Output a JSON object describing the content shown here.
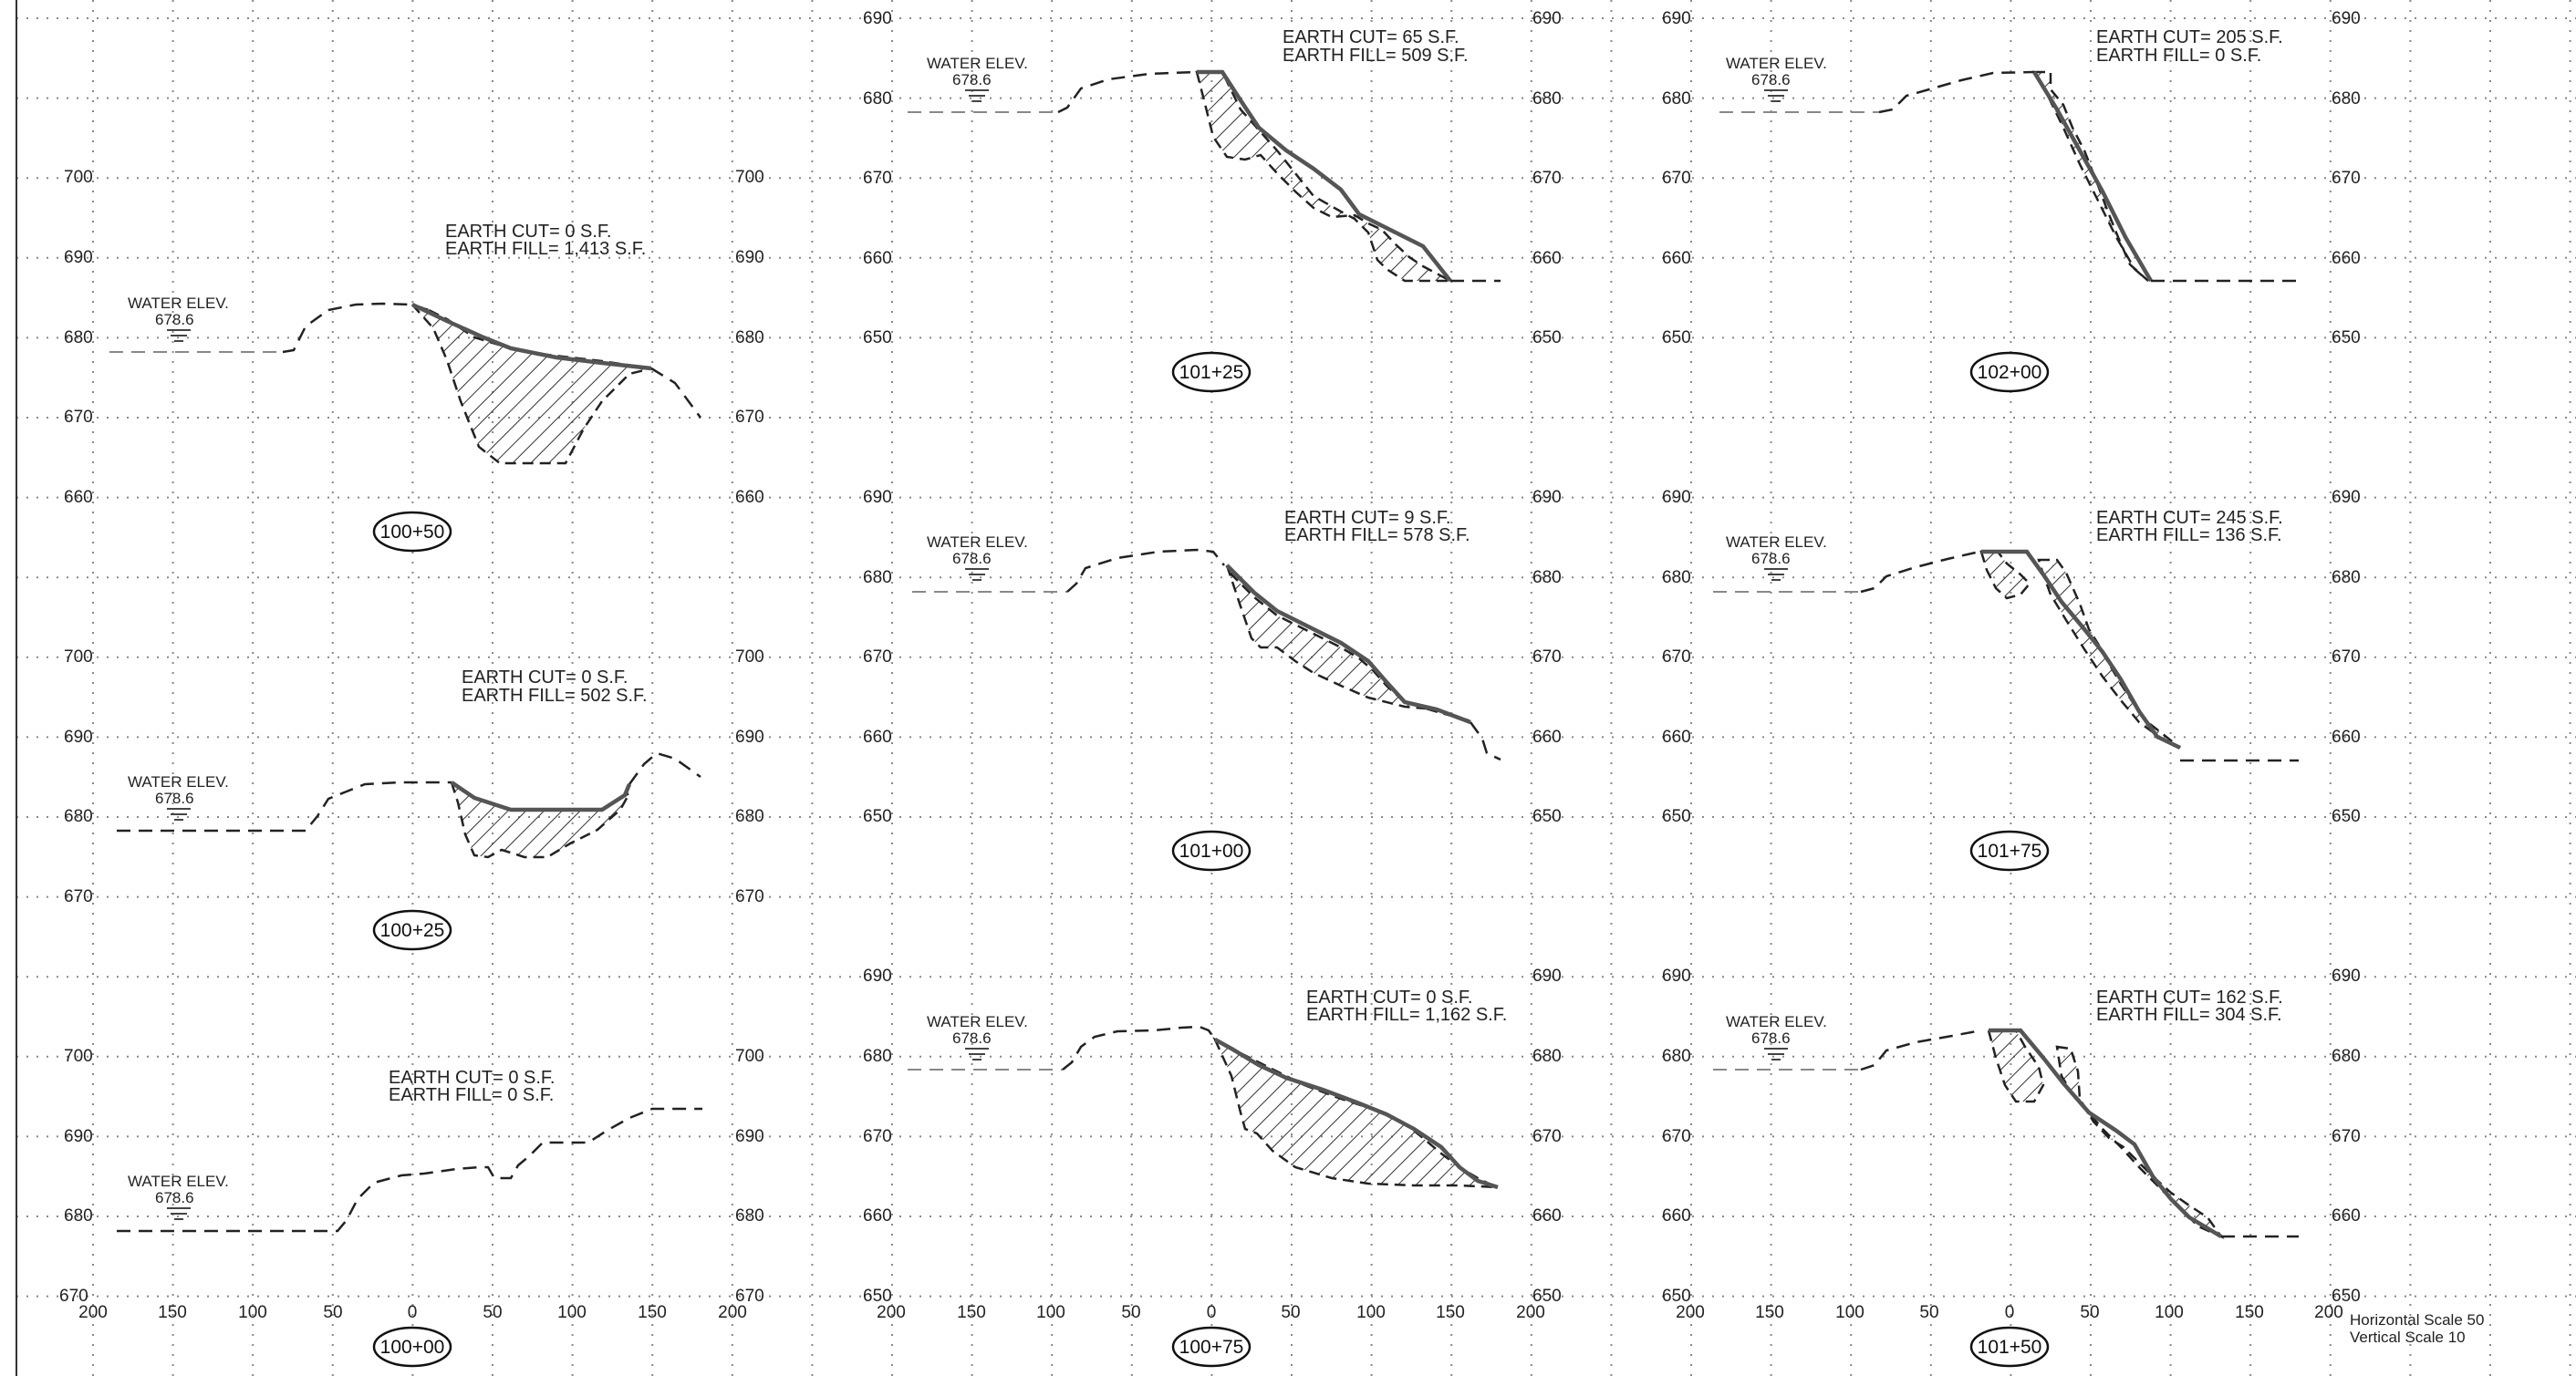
{
  "sheet": {
    "scale_note": {
      "horizontal": "Horizontal Scale 50",
      "vertical": "Vertical Scale 10"
    }
  },
  "sections": [
    {
      "id": "s10050",
      "station": "100+50",
      "earth_cut": "EARTH CUT=  0 S.F.",
      "earth_fill": "EARTH FILL= 1,413 S.F.",
      "water_label": "WATER ELEV.",
      "water_elev": "678.6",
      "left_elevs": [
        "700",
        "690",
        "680",
        "670",
        "660"
      ],
      "right_elevs": [
        "700",
        "690",
        "680",
        "670",
        "660"
      ],
      "offsets": []
    },
    {
      "id": "s10025",
      "station": "100+25",
      "earth_cut": "EARTH CUT=  0 S.F.",
      "earth_fill": "EARTH FILL= 502 S.F.",
      "water_label": "WATER ELEV.",
      "water_elev": "678.6",
      "left_elevs": [
        "700",
        "690",
        "680",
        "670"
      ],
      "right_elevs": [
        "700",
        "690",
        "680",
        "670"
      ],
      "offsets": []
    },
    {
      "id": "s10000",
      "station": "100+00",
      "earth_cut": "EARTH CUT=  0 S.F.",
      "earth_fill": "EARTH FILL= 0 S.F.",
      "water_label": "WATER ELEV.",
      "water_elev": "678.6",
      "left_elevs": [
        "700",
        "690",
        "680",
        "670"
      ],
      "right_elevs": [
        "700",
        "690",
        "680",
        "670"
      ],
      "offsets": [
        "200",
        "150",
        "100",
        "50",
        "0",
        "50",
        "100",
        "150",
        "200"
      ]
    },
    {
      "id": "s10125",
      "station": "101+25",
      "earth_cut": "EARTH CUT=  65 S.F.",
      "earth_fill": "EARTH FILL= 509 S.F.",
      "water_label": "WATER ELEV.",
      "water_elev": "678.6",
      "left_elevs": [
        "690",
        "680",
        "670",
        "660",
        "650"
      ],
      "right_elevs": [
        "690",
        "680",
        "670",
        "660",
        "650"
      ],
      "offsets": []
    },
    {
      "id": "s10100",
      "station": "101+00",
      "earth_cut": "EARTH CUT=  9 S.F.",
      "earth_fill": "EARTH FILL= 578 S.F.",
      "water_label": "WATER ELEV.",
      "water_elev": "678.6",
      "left_elevs": [
        "690",
        "680",
        "670",
        "660",
        "650"
      ],
      "right_elevs": [
        "690",
        "680",
        "670",
        "660",
        "650"
      ],
      "offsets": []
    },
    {
      "id": "s10075",
      "station": "100+75",
      "earth_cut": "EARTH CUT=  0 S.F.",
      "earth_fill": "EARTH FILL= 1,162 S.F.",
      "water_label": "WATER ELEV.",
      "water_elev": "678.6",
      "left_elevs": [
        "690",
        "680",
        "670",
        "660",
        "650"
      ],
      "right_elevs": [
        "690",
        "680",
        "670",
        "660",
        "650"
      ],
      "offsets": [
        "200",
        "150",
        "100",
        "50",
        "0",
        "50",
        "100",
        "150",
        "200"
      ]
    },
    {
      "id": "s10200",
      "station": "102+00",
      "earth_cut": "EARTH CUT=  205 S.F.",
      "earth_fill": "EARTH FILL= 0 S.F.",
      "water_label": "WATER ELEV.",
      "water_elev": "678.6",
      "left_elevs": [
        "690",
        "680",
        "670",
        "660",
        "650"
      ],
      "right_elevs": [
        "690",
        "680",
        "670",
        "660",
        "650"
      ],
      "offsets": []
    },
    {
      "id": "s10175",
      "station": "101+75",
      "earth_cut": "EARTH CUT=  245 S.F.",
      "earth_fill": "EARTH FILL= 136 S.F.",
      "water_label": "WATER ELEV.",
      "water_elev": "678.6",
      "left_elevs": [
        "690",
        "680",
        "670",
        "660",
        "650"
      ],
      "right_elevs": [
        "690",
        "680",
        "670",
        "660",
        "650"
      ],
      "offsets": []
    },
    {
      "id": "s10150",
      "station": "101+50",
      "earth_cut": "EARTH CUT=  162 S.F.",
      "earth_fill": "EARTH FILL= 304 S.F.",
      "water_label": "WATER ELEV.",
      "water_elev": "678.6",
      "left_elevs": [
        "690",
        "680",
        "670",
        "660",
        "650"
      ],
      "right_elevs": [
        "690",
        "680",
        "670",
        "660",
        "650"
      ],
      "offsets": [
        "200",
        "150",
        "100",
        "50",
        "0",
        "50",
        "100",
        "150",
        "200"
      ]
    }
  ]
}
